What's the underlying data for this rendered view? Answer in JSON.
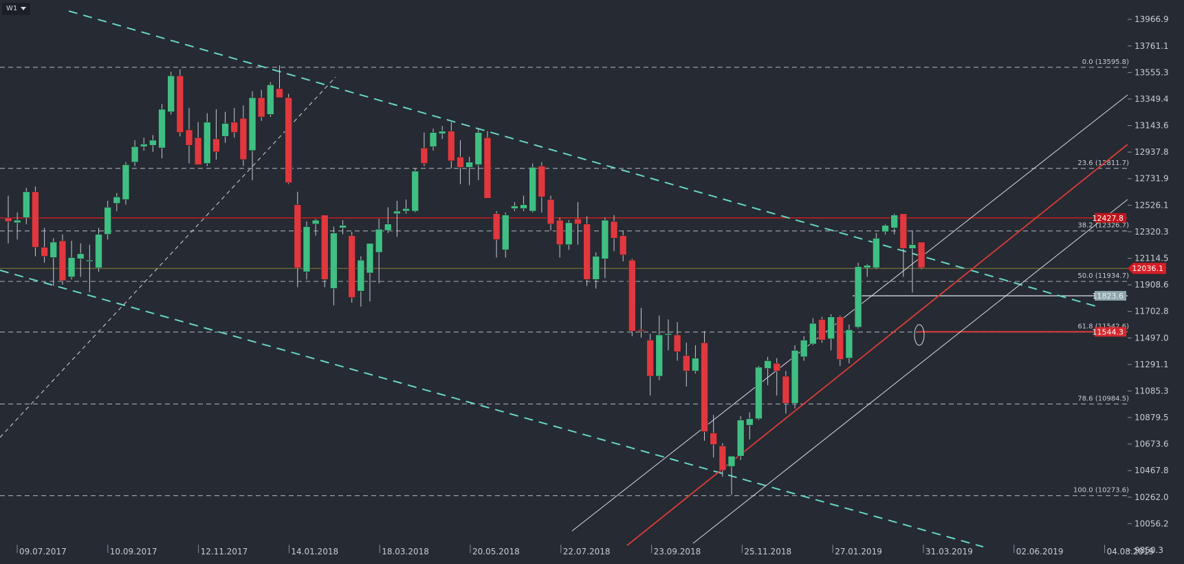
{
  "toolbar": {
    "timeframe": "W1"
  },
  "colors": {
    "background": "#262a33",
    "bull": "#26a69a",
    "bull_fill": "#3fbf83",
    "bear": "#e0383e",
    "fib_line": "#9aa0a8",
    "trend_dashed": "#66d9c7",
    "channel": "#d9dde3",
    "red_channel": "#e13b36",
    "horizontal_red": "#c81e1e",
    "current_line": "#8a7f3a",
    "axis_text": "#c9cdd4"
  },
  "chart_data": {
    "type": "candlestick",
    "timeframe": "W1",
    "ylim": [
      9850.3,
      14080
    ],
    "y_ticks": [
      13966.9,
      13761.1,
      13555.3,
      13349.4,
      13143.6,
      12937.8,
      12731.9,
      12526.1,
      12320.3,
      12114.5,
      11908.6,
      11702.8,
      11497.0,
      11291.1,
      11085.3,
      10879.5,
      10673.6,
      10467.8,
      10262.0,
      10056.2,
      9850.3
    ],
    "x_labels": [
      "09.07.2017",
      "10.09.2017",
      "12.11.2017",
      "14.01.2018",
      "18.03.2018",
      "20.05.2018",
      "22.07.2018",
      "23.09.2018",
      "25.11.2018",
      "27.01.2019",
      "31.03.2019",
      "02.06.2019",
      "04.08.2019"
    ],
    "fibonacci": [
      {
        "label": "0.0 (13595.8)",
        "value": 13595.8
      },
      {
        "label": "23.6 (12811.7)",
        "value": 12811.7
      },
      {
        "label": "38.2 (12326.7)",
        "value": 12326.7
      },
      {
        "label": "50.0 (11934.7)",
        "value": 11934.7
      },
      {
        "label": "61.8 (11542.6)",
        "value": 11542.6
      },
      {
        "label": "78.6 (10984.5)",
        "value": 10984.5
      },
      {
        "label": "100.0 (10273.6)",
        "value": 10273.6
      }
    ],
    "levels": [
      {
        "label": "12427.8",
        "value": 12427.8,
        "kind": "resistance"
      },
      {
        "label": "12036.1",
        "value": 12036.1,
        "kind": "current"
      },
      {
        "label": "11823.6",
        "value": 11823.6,
        "kind": "support"
      },
      {
        "label": "11544.3",
        "value": 11544.3,
        "kind": "support"
      }
    ],
    "candles": [
      {
        "i": 0,
        "o": 12430,
        "h": 12600,
        "l": 12230,
        "c": 12400
      },
      {
        "i": 1,
        "o": 12390,
        "h": 12470,
        "l": 12260,
        "c": 12410
      },
      {
        "i": 2,
        "o": 12430,
        "h": 12660,
        "l": 12380,
        "c": 12630
      },
      {
        "i": 3,
        "o": 12630,
        "h": 12670,
        "l": 12130,
        "c": 12200
      },
      {
        "i": 4,
        "o": 12200,
        "h": 12350,
        "l": 12080,
        "c": 12130
      },
      {
        "i": 5,
        "o": 12120,
        "h": 12270,
        "l": 11900,
        "c": 12240
      },
      {
        "i": 6,
        "o": 12250,
        "h": 12300,
        "l": 11910,
        "c": 11940
      },
      {
        "i": 7,
        "o": 11970,
        "h": 12250,
        "l": 11950,
        "c": 12120
      },
      {
        "i": 8,
        "o": 12110,
        "h": 12230,
        "l": 11970,
        "c": 12150
      },
      {
        "i": 9,
        "o": 12100,
        "h": 12220,
        "l": 11850,
        "c": 12100
      },
      {
        "i": 10,
        "o": 12040,
        "h": 12350,
        "l": 12010,
        "c": 12300
      },
      {
        "i": 11,
        "o": 12300,
        "h": 12560,
        "l": 12260,
        "c": 12510
      },
      {
        "i": 12,
        "o": 12540,
        "h": 12620,
        "l": 12480,
        "c": 12590
      },
      {
        "i": 13,
        "o": 12570,
        "h": 12860,
        "l": 12530,
        "c": 12840
      },
      {
        "i": 14,
        "o": 12860,
        "h": 13030,
        "l": 12830,
        "c": 12980
      },
      {
        "i": 15,
        "o": 12980,
        "h": 13050,
        "l": 12950,
        "c": 13000
      },
      {
        "i": 16,
        "o": 12990,
        "h": 13070,
        "l": 12940,
        "c": 13030
      },
      {
        "i": 17,
        "o": 12970,
        "h": 13310,
        "l": 12890,
        "c": 13270
      },
      {
        "i": 18,
        "o": 13250,
        "h": 13560,
        "l": 13230,
        "c": 13530
      },
      {
        "i": 19,
        "o": 13530,
        "h": 13580,
        "l": 13060,
        "c": 13090
      },
      {
        "i": 20,
        "o": 13110,
        "h": 13280,
        "l": 12850,
        "c": 12990
      },
      {
        "i": 21,
        "o": 13050,
        "h": 13170,
        "l": 12840,
        "c": 12840
      },
      {
        "i": 22,
        "o": 12850,
        "h": 13240,
        "l": 12830,
        "c": 13170
      },
      {
        "i": 23,
        "o": 13040,
        "h": 13270,
        "l": 12880,
        "c": 12940
      },
      {
        "i": 24,
        "o": 13060,
        "h": 13250,
        "l": 13010,
        "c": 13160
      },
      {
        "i": 25,
        "o": 13170,
        "h": 13280,
        "l": 13050,
        "c": 13090
      },
      {
        "i": 26,
        "o": 13200,
        "h": 13300,
        "l": 12830,
        "c": 12880
      },
      {
        "i": 27,
        "o": 12950,
        "h": 13410,
        "l": 12720,
        "c": 13360
      },
      {
        "i": 28,
        "o": 13360,
        "h": 13420,
        "l": 13180,
        "c": 13210
      },
      {
        "i": 29,
        "o": 13230,
        "h": 13480,
        "l": 13210,
        "c": 13460
      },
      {
        "i": 30,
        "o": 13430,
        "h": 13610,
        "l": 13360,
        "c": 13360
      },
      {
        "i": 31,
        "o": 13360,
        "h": 13390,
        "l": 12690,
        "c": 12700
      },
      {
        "i": 32,
        "o": 12530,
        "h": 12630,
        "l": 11890,
        "c": 12040
      },
      {
        "i": 33,
        "o": 12010,
        "h": 12400,
        "l": 11950,
        "c": 12360
      },
      {
        "i": 34,
        "o": 12380,
        "h": 12420,
        "l": 12290,
        "c": 12410
      },
      {
        "i": 35,
        "o": 12450,
        "h": 12450,
        "l": 11890,
        "c": 11950
      },
      {
        "i": 36,
        "o": 11880,
        "h": 12360,
        "l": 11750,
        "c": 12310
      },
      {
        "i": 37,
        "o": 12350,
        "h": 12410,
        "l": 12300,
        "c": 12370
      },
      {
        "i": 38,
        "o": 12290,
        "h": 12320,
        "l": 11770,
        "c": 11810
      },
      {
        "i": 39,
        "o": 11860,
        "h": 12130,
        "l": 11740,
        "c": 12100
      },
      {
        "i": 40,
        "o": 12000,
        "h": 12230,
        "l": 11780,
        "c": 12230
      },
      {
        "i": 41,
        "o": 12160,
        "h": 12420,
        "l": 11920,
        "c": 12340
      },
      {
        "i": 42,
        "o": 12330,
        "h": 12510,
        "l": 12310,
        "c": 12380
      },
      {
        "i": 43,
        "o": 12460,
        "h": 12560,
        "l": 12280,
        "c": 12480
      },
      {
        "i": 44,
        "o": 12480,
        "h": 12570,
        "l": 12460,
        "c": 12500
      },
      {
        "i": 45,
        "o": 12480,
        "h": 12810,
        "l": 12470,
        "c": 12790
      },
      {
        "i": 46,
        "o": 12970,
        "h": 13090,
        "l": 12830,
        "c": 12850
      },
      {
        "i": 47,
        "o": 12980,
        "h": 13120,
        "l": 12950,
        "c": 13090
      },
      {
        "i": 48,
        "o": 13080,
        "h": 13140,
        "l": 13040,
        "c": 13100
      },
      {
        "i": 49,
        "o": 13100,
        "h": 13170,
        "l": 12810,
        "c": 12870
      },
      {
        "i": 50,
        "o": 12900,
        "h": 13030,
        "l": 12690,
        "c": 12820
      },
      {
        "i": 51,
        "o": 12820,
        "h": 12900,
        "l": 12680,
        "c": 12860
      },
      {
        "i": 52,
        "o": 12840,
        "h": 13120,
        "l": 12720,
        "c": 13090
      },
      {
        "i": 53,
        "o": 13050,
        "h": 13100,
        "l": 12620,
        "c": 12580
      },
      {
        "i": 54,
        "o": 12460,
        "h": 12480,
        "l": 12120,
        "c": 12260
      },
      {
        "i": 55,
        "o": 12180,
        "h": 12470,
        "l": 12120,
        "c": 12450
      },
      {
        "i": 56,
        "o": 12500,
        "h": 12550,
        "l": 12480,
        "c": 12520
      },
      {
        "i": 57,
        "o": 12500,
        "h": 12600,
        "l": 12480,
        "c": 12530
      },
      {
        "i": 58,
        "o": 12480,
        "h": 12850,
        "l": 12470,
        "c": 12820
      },
      {
        "i": 59,
        "o": 12830,
        "h": 12860,
        "l": 12470,
        "c": 12590
      },
      {
        "i": 60,
        "o": 12570,
        "h": 12600,
        "l": 12330,
        "c": 12380
      },
      {
        "i": 61,
        "o": 12410,
        "h": 12430,
        "l": 12120,
        "c": 12220
      },
      {
        "i": 62,
        "o": 12220,
        "h": 12410,
        "l": 12180,
        "c": 12390
      },
      {
        "i": 63,
        "o": 12420,
        "h": 12550,
        "l": 12220,
        "c": 12380
      },
      {
        "i": 64,
        "o": 12380,
        "h": 12440,
        "l": 11900,
        "c": 11950
      },
      {
        "i": 65,
        "o": 11950,
        "h": 12160,
        "l": 11880,
        "c": 12130
      },
      {
        "i": 66,
        "o": 12110,
        "h": 12430,
        "l": 11960,
        "c": 12410
      },
      {
        "i": 67,
        "o": 12400,
        "h": 12450,
        "l": 12170,
        "c": 12270
      },
      {
        "i": 68,
        "o": 12290,
        "h": 12330,
        "l": 12090,
        "c": 12140
      },
      {
        "i": 69,
        "o": 12100,
        "h": 12110,
        "l": 11510,
        "c": 11550
      },
      {
        "i": 70,
        "o": 11560,
        "h": 11730,
        "l": 11500,
        "c": 11550
      },
      {
        "i": 71,
        "o": 11480,
        "h": 11530,
        "l": 11050,
        "c": 11200
      },
      {
        "i": 72,
        "o": 11200,
        "h": 11670,
        "l": 11170,
        "c": 11520
      },
      {
        "i": 73,
        "o": 11530,
        "h": 11640,
        "l": 11400,
        "c": 11530
      },
      {
        "i": 74,
        "o": 11520,
        "h": 11620,
        "l": 11320,
        "c": 11390
      },
      {
        "i": 75,
        "o": 11360,
        "h": 11460,
        "l": 11120,
        "c": 11240
      },
      {
        "i": 76,
        "o": 11240,
        "h": 11440,
        "l": 11220,
        "c": 11340
      },
      {
        "i": 77,
        "o": 11460,
        "h": 11550,
        "l": 10700,
        "c": 10770
      },
      {
        "i": 78,
        "o": 10760,
        "h": 10900,
        "l": 10570,
        "c": 10670
      },
      {
        "i": 79,
        "o": 10660,
        "h": 10680,
        "l": 10420,
        "c": 10470
      },
      {
        "i": 80,
        "o": 10500,
        "h": 10550,
        "l": 10280,
        "c": 10580
      },
      {
        "i": 81,
        "o": 10580,
        "h": 10890,
        "l": 10550,
        "c": 10860
      },
      {
        "i": 82,
        "o": 10820,
        "h": 10920,
        "l": 10710,
        "c": 10870
      },
      {
        "i": 83,
        "o": 10870,
        "h": 11280,
        "l": 10860,
        "c": 11270
      },
      {
        "i": 84,
        "o": 11260,
        "h": 11350,
        "l": 11130,
        "c": 11320
      },
      {
        "i": 85,
        "o": 11300,
        "h": 11340,
        "l": 11050,
        "c": 11240
      },
      {
        "i": 86,
        "o": 11200,
        "h": 11240,
        "l": 10910,
        "c": 10990
      },
      {
        "i": 87,
        "o": 10990,
        "h": 11440,
        "l": 10950,
        "c": 11400
      },
      {
        "i": 88,
        "o": 11350,
        "h": 11510,
        "l": 11320,
        "c": 11480
      },
      {
        "i": 89,
        "o": 11450,
        "h": 11650,
        "l": 11440,
        "c": 11610
      },
      {
        "i": 90,
        "o": 11640,
        "h": 11660,
        "l": 11460,
        "c": 11480
      },
      {
        "i": 91,
        "o": 11490,
        "h": 11680,
        "l": 11400,
        "c": 11660
      },
      {
        "i": 92,
        "o": 11660,
        "h": 11670,
        "l": 11280,
        "c": 11330
      },
      {
        "i": 93,
        "o": 11340,
        "h": 11600,
        "l": 11300,
        "c": 11560
      },
      {
        "i": 94,
        "o": 11580,
        "h": 12080,
        "l": 11570,
        "c": 12050
      },
      {
        "i": 95,
        "o": 12040,
        "h": 12070,
        "l": 11970,
        "c": 12060
      },
      {
        "i": 96,
        "o": 12040,
        "h": 12310,
        "l": 12030,
        "c": 12270
      },
      {
        "i": 97,
        "o": 12320,
        "h": 12380,
        "l": 12300,
        "c": 12370
      },
      {
        "i": 98,
        "o": 12350,
        "h": 12460,
        "l": 12300,
        "c": 12450
      },
      {
        "i": 99,
        "o": 12460,
        "h": 12460,
        "l": 11970,
        "c": 12190
      },
      {
        "i": 100,
        "o": 12190,
        "h": 12330,
        "l": 11850,
        "c": 12220
      },
      {
        "i": 101,
        "o": 12240,
        "h": 12240,
        "l": 12030,
        "c": 12040
      }
    ]
  }
}
